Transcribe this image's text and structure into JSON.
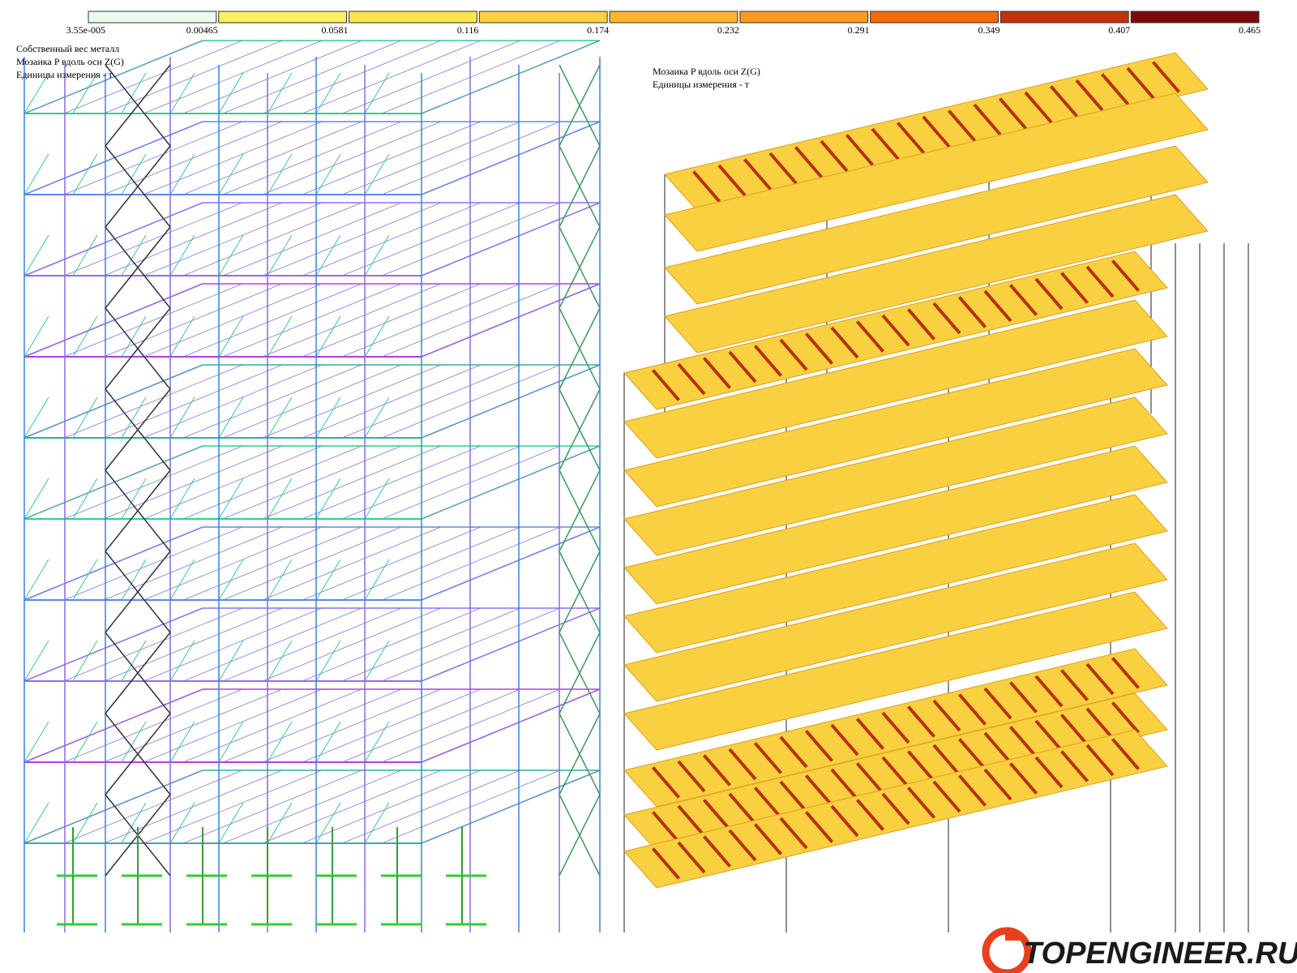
{
  "legend": {
    "labels": [
      "3.55e-005",
      "0.00465",
      "0.0581",
      "0.116",
      "0.174",
      "0.232",
      "0.291",
      "0.349",
      "0.407",
      "0.465"
    ],
    "colors": [
      "#eafcee",
      "#fbf060",
      "#fde44a",
      "#fdd23c",
      "#fdb52e",
      "#fd9b1e",
      "#f66a0c",
      "#c2320e",
      "#7a0a0a"
    ]
  },
  "left_view": {
    "lines": [
      "Собственный вес металл",
      "Мозаика P вдоль оси  Z(G)",
      "Единицы измерения - т"
    ]
  },
  "right_view": {
    "lines": [
      "Мозаика P вдоль оси  Z(G)",
      "Единицы измерения - т"
    ]
  },
  "watermark": {
    "text": "TOPENGINEER.RU"
  }
}
